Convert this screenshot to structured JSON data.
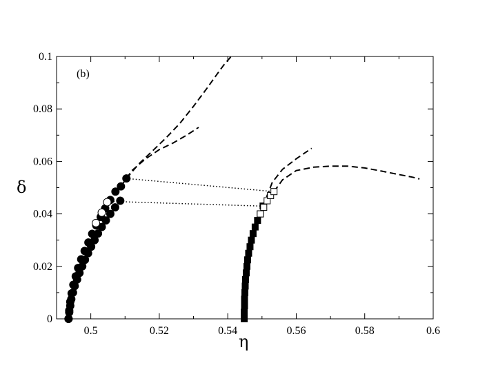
{
  "chart_data": {
    "type": "scatter",
    "panel_label": "(b)",
    "xlabel": "η",
    "ylabel": "δ",
    "xlim": [
      0.49,
      0.6
    ],
    "ylim": [
      0,
      0.1
    ],
    "xticks": [
      {
        "value": 0.5,
        "label": "0.5"
      },
      {
        "value": 0.52,
        "label": "0.52"
      },
      {
        "value": 0.54,
        "label": "0.54"
      },
      {
        "value": 0.56,
        "label": "0.56"
      },
      {
        "value": 0.58,
        "label": "0.58"
      },
      {
        "value": 0.6,
        "label": "0.6"
      }
    ],
    "yticks": [
      {
        "value": 0,
        "label": "0"
      },
      {
        "value": 0.02,
        "label": "0.02"
      },
      {
        "value": 0.04,
        "label": "0.04"
      },
      {
        "value": 0.06,
        "label": "0.06"
      },
      {
        "value": 0.08,
        "label": "0.08"
      },
      {
        "value": 0.1,
        "label": "0.1"
      }
    ],
    "grid": false,
    "series": [
      {
        "marker": "filled-circle",
        "x": [
          0.4935,
          0.4937,
          0.494,
          0.4943,
          0.4948,
          0.4953,
          0.496,
          0.4967,
          0.4975,
          0.4983,
          0.4992,
          0.5001,
          0.5011,
          0.5021,
          0.5032,
          0.5044,
          0.5057,
          0.5071,
          0.5086
        ],
        "y": [
          0.0,
          0.0025,
          0.005,
          0.0075,
          0.01,
          0.0125,
          0.015,
          0.0175,
          0.02,
          0.0225,
          0.025,
          0.0275,
          0.03,
          0.0325,
          0.035,
          0.0375,
          0.04,
          0.0425,
          0.045
        ]
      },
      {
        "marker": "filled-circle",
        "x": [
          0.4935,
          0.4937,
          0.494,
          0.4944,
          0.4949,
          0.4956,
          0.4963,
          0.4972,
          0.4982,
          0.4993,
          0.5004,
          0.5016,
          0.5029,
          0.5042,
          0.5057,
          0.5072,
          0.5088,
          0.5104
        ],
        "y": [
          0.0,
          0.0032,
          0.0065,
          0.0097,
          0.013,
          0.0162,
          0.0194,
          0.0227,
          0.0259,
          0.0291,
          0.0324,
          0.0356,
          0.0388,
          0.0421,
          0.0453,
          0.0485,
          0.0505,
          0.0535
        ]
      },
      {
        "marker": "open-circle",
        "x": [
          0.5015,
          0.5032,
          0.5048
        ],
        "y": [
          0.0365,
          0.0405,
          0.0445
        ]
      },
      {
        "marker": "filled-square",
        "x": [
          0.5448,
          0.5448,
          0.5449,
          0.5449,
          0.545,
          0.5451,
          0.5452,
          0.5454,
          0.5456,
          0.5458,
          0.5461,
          0.5465,
          0.5469,
          0.5474,
          0.548,
          0.5487,
          0.5495,
          0.5503
        ],
        "y": [
          0.0,
          0.0025,
          0.005,
          0.0075,
          0.01,
          0.0125,
          0.015,
          0.0175,
          0.02,
          0.0225,
          0.025,
          0.0275,
          0.03,
          0.0325,
          0.035,
          0.0375,
          0.04,
          0.043
        ]
      },
      {
        "marker": "open-square",
        "x": [
          0.5495,
          0.5505,
          0.5515,
          0.5525,
          0.5535
        ],
        "y": [
          0.04,
          0.0425,
          0.045,
          0.047,
          0.0485
        ]
      },
      {
        "style": "dashed",
        "x": [
          0.5104,
          0.514,
          0.518,
          0.522,
          0.526,
          0.53,
          0.534,
          0.537,
          0.539,
          0.541
        ],
        "y": [
          0.0535,
          0.059,
          0.064,
          0.069,
          0.0745,
          0.081,
          0.088,
          0.0935,
          0.097,
          0.1
        ]
      },
      {
        "style": "dashed",
        "x": [
          0.5088,
          0.512,
          0.516,
          0.52,
          0.524,
          0.528,
          0.5315
        ],
        "y": [
          0.0505,
          0.0565,
          0.061,
          0.0645,
          0.067,
          0.07,
          0.073
        ]
      },
      {
        "style": "dashed",
        "x": [
          0.5535,
          0.556,
          0.56,
          0.565,
          0.57,
          0.575,
          0.58,
          0.585,
          0.59,
          0.594,
          0.596
        ],
        "y": [
          0.0485,
          0.053,
          0.0565,
          0.0578,
          0.0582,
          0.0582,
          0.0575,
          0.0563,
          0.055,
          0.054,
          0.0533
        ]
      },
      {
        "style": "dashed",
        "x": [
          0.5503,
          0.553,
          0.556,
          0.56,
          0.5645
        ],
        "y": [
          0.043,
          0.052,
          0.057,
          0.061,
          0.065
        ]
      },
      {
        "style": "dotted",
        "x": [
          0.5104,
          0.5535
        ],
        "y": [
          0.0535,
          0.0485
        ]
      },
      {
        "style": "dotted",
        "x": [
          0.5048,
          0.5495
        ],
        "y": [
          0.0448,
          0.043
        ]
      }
    ]
  }
}
